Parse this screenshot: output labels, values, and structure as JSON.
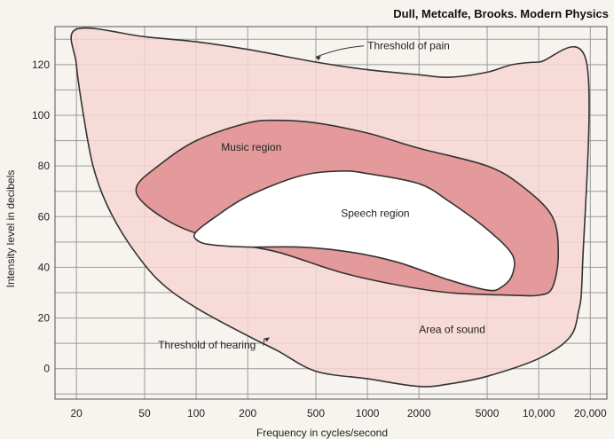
{
  "header": "Dull, Metcalfe, Brooks. Modern Physics",
  "colors": {
    "background": "#f7f4ef",
    "grid": "#9a9a9a",
    "sound_fill": "#f7d6d4",
    "music_fill": "#e49a9a",
    "speech_fill": "#ffffff",
    "outline": "#333333"
  },
  "chart_data": {
    "type": "area",
    "xlabel": "Frequency in cycles/second",
    "ylabel": "Intensity level in decibels",
    "x_scale": "log",
    "xlim": [
      15,
      25000
    ],
    "ylim": [
      -12,
      135
    ],
    "grid": true,
    "x_ticks": [
      {
        "value": 20,
        "label": "20"
      },
      {
        "value": 50,
        "label": "50"
      },
      {
        "value": 100,
        "label": "100"
      },
      {
        "value": 200,
        "label": "200"
      },
      {
        "value": 500,
        "label": "500"
      },
      {
        "value": 1000,
        "label": "1000"
      },
      {
        "value": 2000,
        "label": "2000"
      },
      {
        "value": 5000,
        "label": "5000"
      },
      {
        "value": 10000,
        "label": "10,000"
      },
      {
        "value": 20000,
        "label": "20,000"
      }
    ],
    "y_ticks": [
      {
        "value": 0,
        "label": "0"
      },
      {
        "value": 20,
        "label": "20"
      },
      {
        "value": 40,
        "label": "40"
      },
      {
        "value": 60,
        "label": "60"
      },
      {
        "value": 80,
        "label": "80"
      },
      {
        "value": 100,
        "label": "100"
      },
      {
        "value": 120,
        "label": "120"
      }
    ],
    "regions": [
      {
        "name": "Area of sound",
        "fill": "sound_fill",
        "points": [
          [
            20,
            134
          ],
          [
            50,
            131
          ],
          [
            100,
            129
          ],
          [
            200,
            126
          ],
          [
            500,
            121
          ],
          [
            1000,
            118
          ],
          [
            2000,
            116
          ],
          [
            3000,
            115
          ],
          [
            5000,
            117
          ],
          [
            7000,
            120
          ],
          [
            10000,
            121
          ],
          [
            19000,
            121
          ],
          [
            18000,
            40
          ],
          [
            17000,
            22
          ],
          [
            15000,
            12
          ],
          [
            10000,
            4
          ],
          [
            5000,
            -3
          ],
          [
            3000,
            -6
          ],
          [
            2000,
            -7
          ],
          [
            1000,
            -4
          ],
          [
            500,
            -1
          ],
          [
            300,
            7
          ],
          [
            200,
            13
          ],
          [
            100,
            24
          ],
          [
            60,
            35
          ],
          [
            40,
            50
          ],
          [
            30,
            65
          ],
          [
            25,
            80
          ],
          [
            22,
            100
          ],
          [
            20,
            120
          ]
        ]
      },
      {
        "name": "Music region",
        "fill": "music_fill",
        "points": [
          [
            45,
            72
          ],
          [
            60,
            80
          ],
          [
            100,
            90
          ],
          [
            200,
            97
          ],
          [
            300,
            98
          ],
          [
            500,
            97
          ],
          [
            1000,
            93
          ],
          [
            2000,
            87
          ],
          [
            5000,
            80
          ],
          [
            8000,
            72
          ],
          [
            12000,
            60
          ],
          [
            13000,
            45
          ],
          [
            12000,
            32
          ],
          [
            10000,
            29
          ],
          [
            7000,
            29
          ],
          [
            3000,
            30
          ],
          [
            1500,
            33
          ],
          [
            700,
            38
          ],
          [
            300,
            46
          ],
          [
            150,
            50
          ],
          [
            80,
            56
          ],
          [
            50,
            65
          ]
        ]
      },
      {
        "name": "Speech region",
        "fill": "speech_fill",
        "points": [
          [
            100,
            51
          ],
          [
            100,
            54
          ],
          [
            130,
            60
          ],
          [
            200,
            68
          ],
          [
            400,
            76
          ],
          [
            700,
            78
          ],
          [
            1000,
            77
          ],
          [
            2000,
            73
          ],
          [
            3000,
            66
          ],
          [
            5000,
            55
          ],
          [
            7000,
            45
          ],
          [
            7000,
            37
          ],
          [
            6000,
            32
          ],
          [
            5000,
            31
          ],
          [
            3000,
            35
          ],
          [
            1500,
            42
          ],
          [
            800,
            46
          ],
          [
            400,
            48
          ],
          [
            200,
            48
          ],
          [
            120,
            49
          ]
        ]
      }
    ],
    "annotations": [
      {
        "text": "Threshold of pain",
        "x": 1000,
        "y": 126,
        "arrow_to": [
          500,
          123
        ]
      },
      {
        "text": "Threshold of hearing",
        "x": 60,
        "y": 8,
        "arrow_to": [
          250,
          12
        ]
      },
      {
        "text": "Music region",
        "x": 140,
        "y": 86
      },
      {
        "text": "Speech region",
        "x": 700,
        "y": 60
      },
      {
        "text": "Area of sound",
        "x": 2000,
        "y": 14
      }
    ]
  }
}
